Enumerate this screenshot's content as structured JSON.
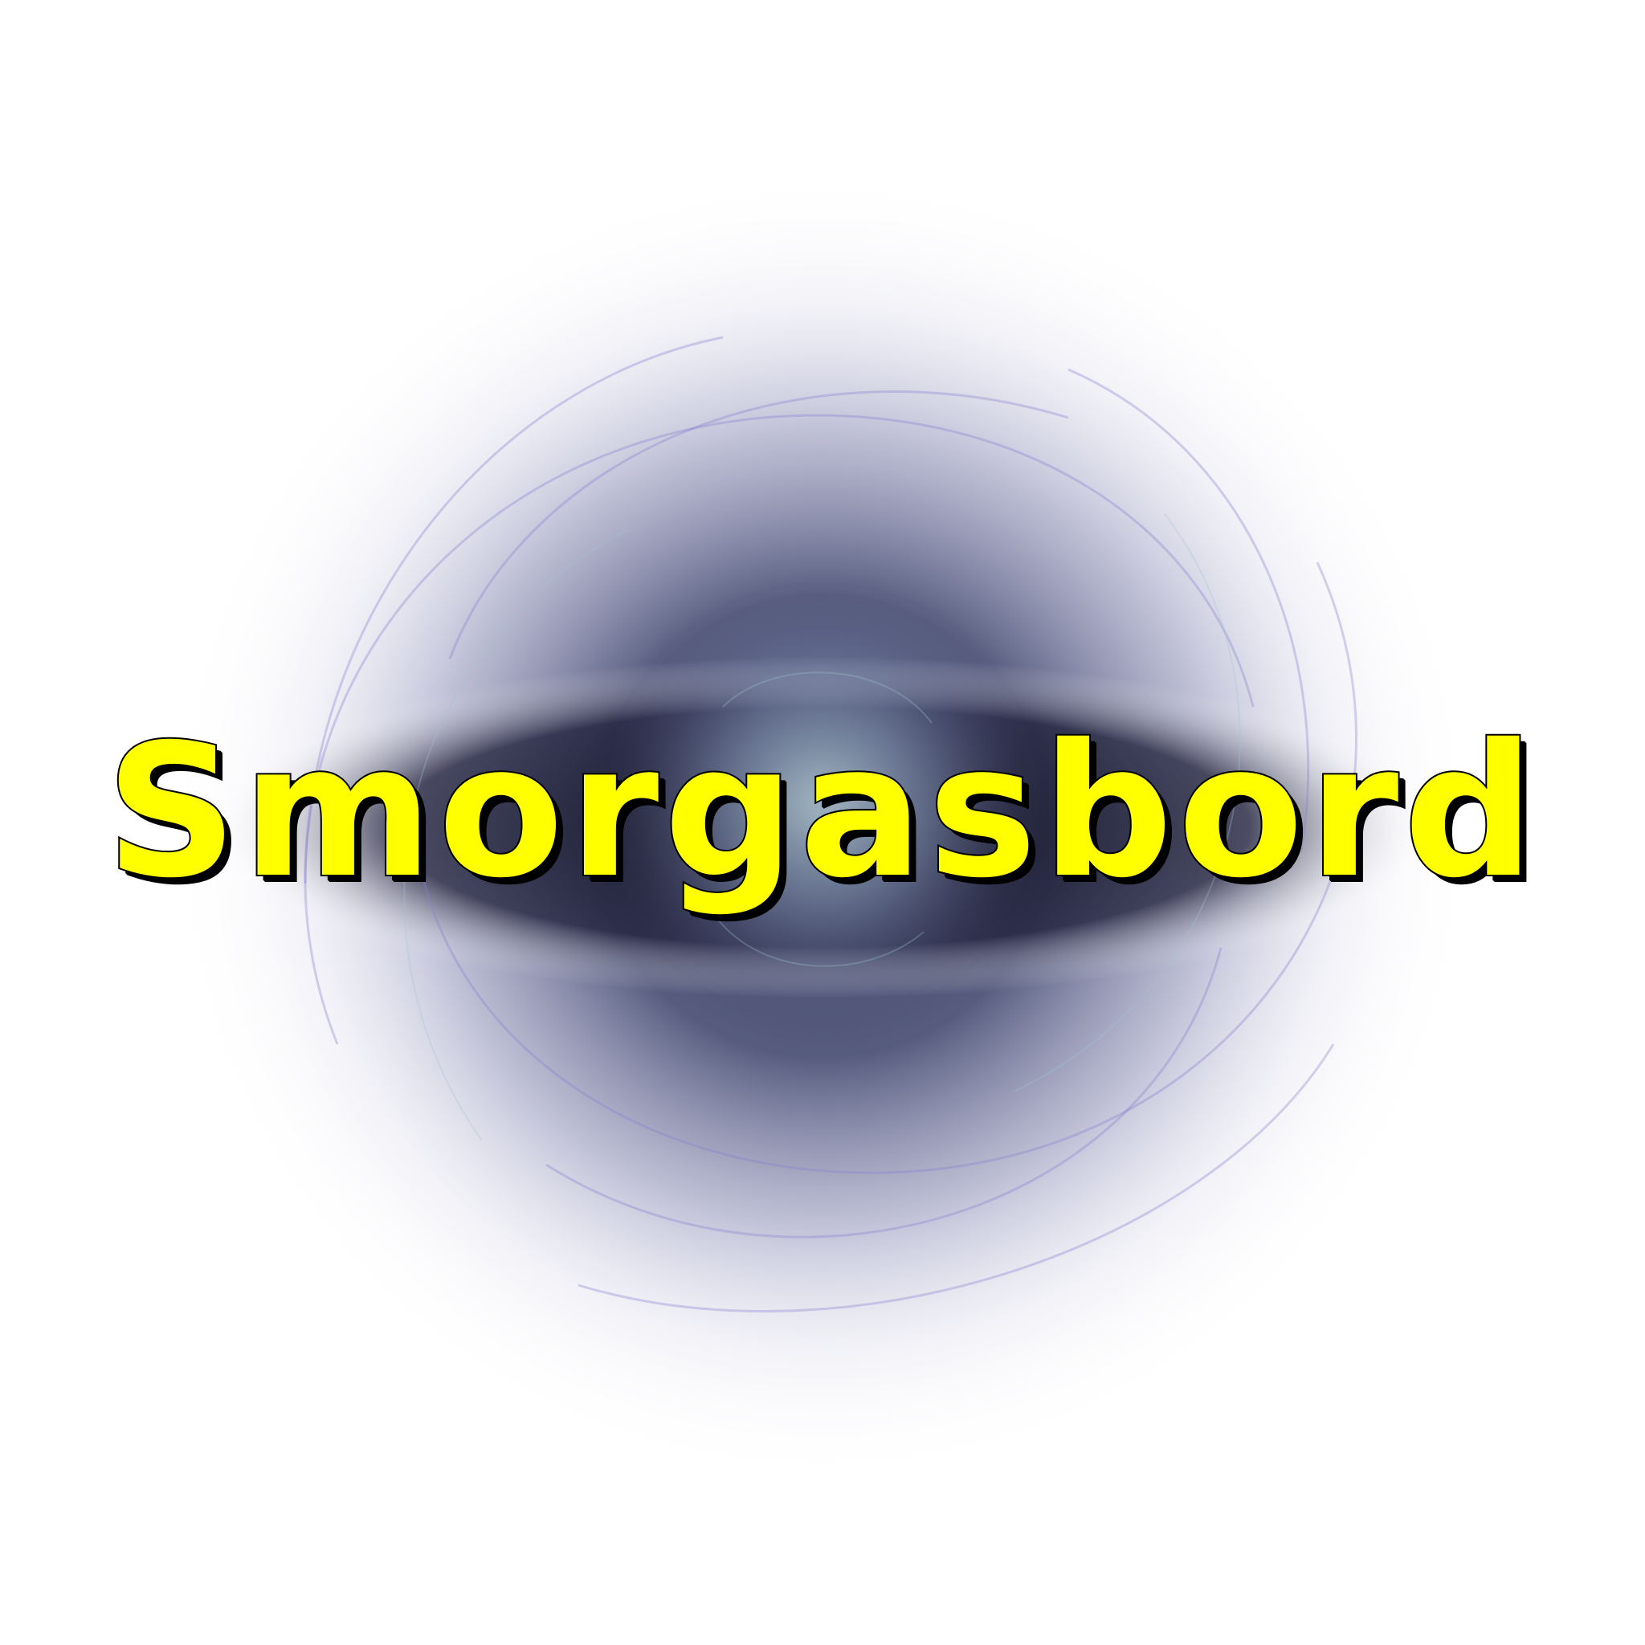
{
  "title_text": "Smorgasbord",
  "colors": {
    "background": "#ffffff",
    "text_fill": "#ffff00",
    "text_outline": "#000000",
    "glow_core": "#2a2a44",
    "glow_mid": "#6a74a0",
    "glow_highlight": "#9fb8c8",
    "swirl_lines": "#8a7fd0"
  }
}
